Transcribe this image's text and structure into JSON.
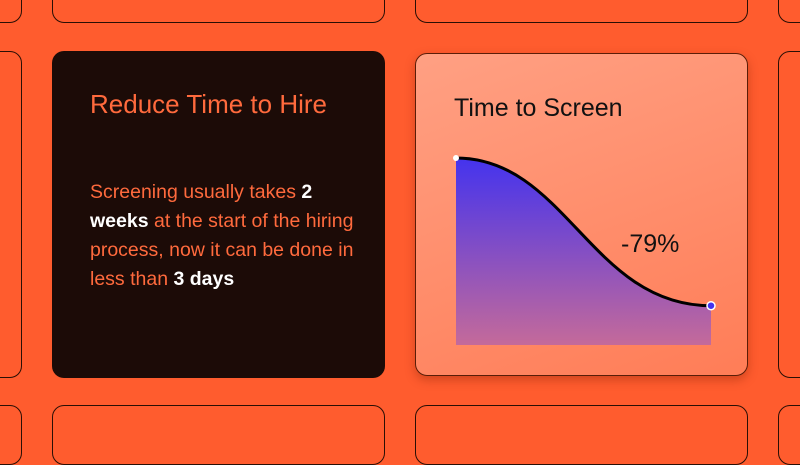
{
  "info_card": {
    "title": "Reduce Time to Hire",
    "body_1": "Screening usually takes ",
    "highlight_1": "2 weeks",
    "body_2": " at the start of the hiring process, now it can be done in less than ",
    "highlight_2": "3 days"
  },
  "chart_card": {
    "title": "Time to Screen",
    "change_label": "-79%"
  },
  "chart_data": {
    "type": "area",
    "title": "Time to Screen",
    "start_value": 100,
    "end_value": 21,
    "annotation": "-79%",
    "colors": {
      "top": "#4433ee",
      "bottom": "#c46a9a",
      "line": "#000000"
    }
  },
  "colors": {
    "background": "#ff5c2e",
    "dark_card": "#1c0b07",
    "accent_text": "#ff6a3d"
  }
}
